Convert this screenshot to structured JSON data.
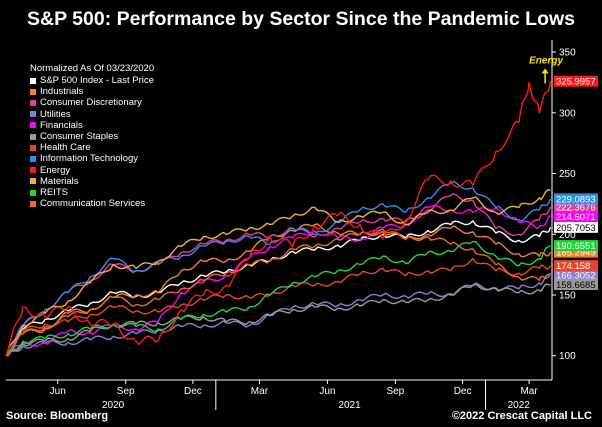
{
  "title": "S&P 500: Performance by Sector Since the Pandemic Lows",
  "source": "Source: Bloomberg",
  "copyright": "©2022 Crescat Capital LLC",
  "colors": {
    "background": "#000000",
    "axis": "#ffffff",
    "text": "#ffffff",
    "annotation_arrow": "#ffe600"
  },
  "chart_data": {
    "type": "line",
    "grid": false,
    "legend_placement": "top-left",
    "legend_header": "Normalized As Of 03/23/2020",
    "ylim": [
      80,
      355
    ],
    "y_ticks": [
      100,
      150,
      200,
      250,
      300,
      350
    ],
    "y_tick_labels": [
      "100",
      "150",
      "200",
      "250",
      "300",
      "350"
    ],
    "xlim": [
      "2020-03-23",
      "2022-04-01"
    ],
    "x_ticks": [
      {
        "date": "2020-06-01",
        "label": "Jun"
      },
      {
        "date": "2020-09-01",
        "label": "Sep"
      },
      {
        "date": "2020-12-01",
        "label": "Dec"
      },
      {
        "date": "2021-03-01",
        "label": "Mar"
      },
      {
        "date": "2021-06-01",
        "label": "Jun"
      },
      {
        "date": "2021-09-01",
        "label": "Sep"
      },
      {
        "date": "2021-12-01",
        "label": "Dec"
      },
      {
        "date": "2022-03-01",
        "label": "Mar"
      }
    ],
    "year_labels": [
      {
        "label": "2020",
        "date": "2020-08-15"
      },
      {
        "label": "2021",
        "date": "2021-07-01"
      },
      {
        "label": "2022",
        "date": "2022-02-15"
      }
    ],
    "year_dividers": [
      "2021-01-01",
      "2022-01-01"
    ],
    "annotation": {
      "text": "Energy",
      "date": "2022-03-20",
      "value": 339
    },
    "series": [
      {
        "name": "S&P 500 Index - Last Price",
        "color": "#ffffff",
        "last_label": "205.7053",
        "last_value": 205.7053,
        "x": [
          "2020-03-23",
          "2020-04-15",
          "2020-05-15",
          "2020-06-15",
          "2020-07-15",
          "2020-08-15",
          "2020-09-15",
          "2020-10-15",
          "2020-11-15",
          "2020-12-15",
          "2021-01-15",
          "2021-02-15",
          "2021-03-15",
          "2021-04-15",
          "2021-05-15",
          "2021-06-15",
          "2021-07-15",
          "2021-08-15",
          "2021-09-15",
          "2021-10-15",
          "2021-11-15",
          "2021-12-15",
          "2022-01-15",
          "2022-02-15",
          "2022-03-15",
          "2022-03-30"
        ],
        "y": [
          100,
          122,
          130,
          137,
          143,
          152,
          149,
          152,
          160,
          166,
          169,
          175,
          178,
          186,
          187,
          191,
          195,
          200,
          197,
          203,
          208,
          211,
          201,
          195,
          198,
          205.7
        ]
      },
      {
        "name": "Industrials",
        "color": "#f58220",
        "last_label": "185.2949",
        "last_value": 185.2949,
        "x": [
          "2020-03-23",
          "2020-04-15",
          "2020-05-15",
          "2020-06-15",
          "2020-07-15",
          "2020-08-15",
          "2020-09-15",
          "2020-10-15",
          "2020-11-15",
          "2020-12-15",
          "2021-01-15",
          "2021-02-15",
          "2021-03-15",
          "2021-04-15",
          "2021-05-15",
          "2021-06-15",
          "2021-07-15",
          "2021-08-15",
          "2021-09-15",
          "2021-10-15",
          "2021-11-15",
          "2021-12-15",
          "2022-01-15",
          "2022-02-15",
          "2022-03-15",
          "2022-03-30"
        ],
        "y": [
          100,
          118,
          122,
          135,
          138,
          148,
          150,
          152,
          170,
          178,
          178,
          186,
          198,
          203,
          208,
          201,
          200,
          202,
          196,
          200,
          205,
          202,
          192,
          184,
          182,
          185.3
        ]
      },
      {
        "name": "Consumer Discretionary",
        "color": "#e6399b",
        "last_label": "222.3676",
        "last_value": 222.3676,
        "x": [
          "2020-03-23",
          "2020-04-15",
          "2020-05-15",
          "2020-06-15",
          "2020-07-15",
          "2020-08-15",
          "2020-09-15",
          "2020-10-15",
          "2020-11-15",
          "2020-12-15",
          "2021-01-15",
          "2021-02-15",
          "2021-03-15",
          "2021-04-15",
          "2021-05-15",
          "2021-06-15",
          "2021-07-15",
          "2021-08-15",
          "2021-09-15",
          "2021-10-15",
          "2021-11-15",
          "2021-12-15",
          "2022-01-15",
          "2022-02-15",
          "2022-03-15",
          "2022-03-30"
        ],
        "y": [
          100,
          125,
          138,
          152,
          162,
          175,
          170,
          175,
          185,
          192,
          195,
          200,
          198,
          205,
          198,
          205,
          210,
          213,
          210,
          220,
          232,
          228,
          205,
          200,
          212,
          222.4
        ]
      },
      {
        "name": "Utilities",
        "color": "#8a7fd6",
        "last_label": "166.3052",
        "last_value": 166.3052,
        "x": [
          "2020-03-23",
          "2020-04-15",
          "2020-05-15",
          "2020-06-15",
          "2020-07-15",
          "2020-08-15",
          "2020-09-15",
          "2020-10-15",
          "2020-11-15",
          "2020-12-15",
          "2021-01-15",
          "2021-02-15",
          "2021-03-15",
          "2021-04-15",
          "2021-05-15",
          "2021-06-15",
          "2021-07-15",
          "2021-08-15",
          "2021-09-15",
          "2021-10-15",
          "2021-11-15",
          "2021-12-15",
          "2022-01-15",
          "2022-02-15",
          "2022-03-15",
          "2022-03-30"
        ],
        "y": [
          100,
          108,
          110,
          111,
          113,
          116,
          118,
          121,
          124,
          125,
          127,
          125,
          133,
          140,
          143,
          141,
          146,
          150,
          149,
          151,
          151,
          158,
          156,
          155,
          160,
          166.3
        ]
      },
      {
        "name": "Financials",
        "color": "#ff00ff",
        "last_label": "214.6071",
        "last_value": 214.6071,
        "x": [
          "2020-03-23",
          "2020-04-15",
          "2020-05-15",
          "2020-06-15",
          "2020-07-15",
          "2020-08-15",
          "2020-09-15",
          "2020-10-15",
          "2020-11-15",
          "2020-12-15",
          "2021-01-15",
          "2021-02-15",
          "2021-03-15",
          "2021-04-15",
          "2021-05-15",
          "2021-06-15",
          "2021-07-15",
          "2021-08-15",
          "2021-09-15",
          "2021-10-15",
          "2021-11-15",
          "2021-12-15",
          "2022-01-15",
          "2022-02-15",
          "2022-03-15",
          "2022-03-30"
        ],
        "y": [
          100,
          110,
          110,
          120,
          119,
          125,
          122,
          128,
          152,
          160,
          166,
          180,
          190,
          197,
          203,
          197,
          196,
          205,
          208,
          222,
          220,
          218,
          222,
          210,
          206,
          214.6
        ]
      },
      {
        "name": "Consumer Staples",
        "color": "#9a9a9a",
        "last_label": "158.6685",
        "last_value": 158.6685,
        "x": [
          "2020-03-23",
          "2020-04-15",
          "2020-05-15",
          "2020-06-15",
          "2020-07-15",
          "2020-08-15",
          "2020-09-15",
          "2020-10-15",
          "2020-11-15",
          "2020-12-15",
          "2021-01-15",
          "2021-02-15",
          "2021-03-15",
          "2021-04-15",
          "2021-05-15",
          "2021-06-15",
          "2021-07-15",
          "2021-08-15",
          "2021-09-15",
          "2021-10-15",
          "2021-11-15",
          "2021-12-15",
          "2022-01-15",
          "2022-02-15",
          "2022-03-15",
          "2022-03-30"
        ],
        "y": [
          100,
          110,
          112,
          114,
          120,
          126,
          126,
          127,
          130,
          132,
          128,
          128,
          133,
          138,
          140,
          139,
          141,
          146,
          144,
          146,
          150,
          158,
          155,
          152,
          154,
          158.7
        ]
      },
      {
        "name": "Health Care",
        "color": "#e8452c",
        "last_label": "174.158",
        "last_value": 174.158,
        "x": [
          "2020-03-23",
          "2020-04-15",
          "2020-05-15",
          "2020-06-15",
          "2020-07-15",
          "2020-08-15",
          "2020-09-15",
          "2020-10-15",
          "2020-11-15",
          "2020-12-15",
          "2021-01-15",
          "2021-02-15",
          "2021-03-15",
          "2021-04-15",
          "2021-05-15",
          "2021-06-15",
          "2021-07-15",
          "2021-08-15",
          "2021-09-15",
          "2021-10-15",
          "2021-11-15",
          "2021-12-15",
          "2022-01-15",
          "2022-02-15",
          "2022-03-15",
          "2022-03-30"
        ],
        "y": [
          100,
          120,
          126,
          128,
          134,
          140,
          137,
          136,
          142,
          146,
          150,
          148,
          150,
          158,
          158,
          161,
          167,
          172,
          166,
          170,
          170,
          180,
          170,
          168,
          172,
          174.2
        ]
      },
      {
        "name": "Information Technology",
        "color": "#2f8fe8",
        "last_label": "229.0893",
        "last_value": 229.0893,
        "x": [
          "2020-03-23",
          "2020-04-15",
          "2020-05-15",
          "2020-06-15",
          "2020-07-15",
          "2020-08-15",
          "2020-09-15",
          "2020-10-15",
          "2020-11-15",
          "2020-12-15",
          "2021-01-15",
          "2021-02-15",
          "2021-03-15",
          "2021-04-15",
          "2021-05-15",
          "2021-06-15",
          "2021-07-15",
          "2021-08-15",
          "2021-09-15",
          "2021-10-15",
          "2021-11-15",
          "2021-12-15",
          "2022-01-15",
          "2022-02-15",
          "2022-03-15",
          "2022-03-30"
        ],
        "y": [
          100,
          124,
          138,
          152,
          165,
          180,
          170,
          176,
          182,
          190,
          194,
          198,
          192,
          205,
          200,
          210,
          220,
          225,
          218,
          230,
          242,
          238,
          222,
          212,
          220,
          229.1
        ]
      },
      {
        "name": "Energy",
        "color": "#ff1a1a",
        "last_label": "325.9957",
        "last_value": 325.9957,
        "x": [
          "2020-03-23",
          "2020-04-15",
          "2020-05-15",
          "2020-06-15",
          "2020-07-15",
          "2020-08-15",
          "2020-09-15",
          "2020-10-15",
          "2020-11-15",
          "2020-12-15",
          "2021-01-15",
          "2021-02-15",
          "2021-03-15",
          "2021-04-15",
          "2021-05-15",
          "2021-06-15",
          "2021-07-15",
          "2021-08-15",
          "2021-09-15",
          "2021-10-15",
          "2021-11-15",
          "2021-12-15",
          "2022-01-15",
          "2022-02-15",
          "2022-03-01",
          "2022-03-15",
          "2022-03-30"
        ],
        "y": [
          100,
          140,
          132,
          140,
          126,
          126,
          112,
          112,
          138,
          150,
          158,
          180,
          198,
          190,
          207,
          215,
          208,
          196,
          212,
          245,
          244,
          240,
          268,
          292,
          325,
          300,
          326
        ]
      },
      {
        "name": "Materials",
        "color": "#f2b134",
        "last_label": "",
        "last_value": 236,
        "x": [
          "2020-03-23",
          "2020-04-15",
          "2020-05-15",
          "2020-06-15",
          "2020-07-15",
          "2020-08-15",
          "2020-09-15",
          "2020-10-15",
          "2020-11-15",
          "2020-12-15",
          "2021-01-15",
          "2021-02-15",
          "2021-03-15",
          "2021-04-15",
          "2021-05-15",
          "2021-06-15",
          "2021-07-15",
          "2021-08-15",
          "2021-09-15",
          "2021-10-15",
          "2021-11-15",
          "2021-12-15",
          "2022-01-15",
          "2022-02-15",
          "2022-03-15",
          "2022-03-30"
        ],
        "y": [
          100,
          125,
          135,
          145,
          160,
          175,
          172,
          178,
          190,
          198,
          200,
          205,
          208,
          215,
          222,
          210,
          215,
          218,
          208,
          218,
          220,
          230,
          218,
          222,
          230,
          236
        ]
      },
      {
        "name": "REITS",
        "color": "#22d43a",
        "last_label": "190.6551",
        "last_value": 190.6551,
        "x": [
          "2020-03-23",
          "2020-04-15",
          "2020-05-15",
          "2020-06-15",
          "2020-07-15",
          "2020-08-15",
          "2020-09-15",
          "2020-10-15",
          "2020-11-15",
          "2020-12-15",
          "2021-01-15",
          "2021-02-15",
          "2021-03-15",
          "2021-04-15",
          "2021-05-15",
          "2021-06-15",
          "2021-07-15",
          "2021-08-15",
          "2021-09-15",
          "2021-10-15",
          "2021-11-15",
          "2021-12-15",
          "2022-01-15",
          "2022-02-15",
          "2022-03-15",
          "2022-03-30"
        ],
        "y": [
          100,
          112,
          114,
          118,
          122,
          126,
          124,
          122,
          130,
          134,
          136,
          140,
          150,
          160,
          165,
          170,
          175,
          182,
          176,
          185,
          186,
          194,
          182,
          174,
          180,
          190.7
        ]
      },
      {
        "name": "Communication Services",
        "color": "#f06a1e",
        "last_label": "",
        "last_value": 168,
        "x": [
          "2020-03-23",
          "2020-04-15",
          "2020-05-15",
          "2020-06-15",
          "2020-07-15",
          "2020-08-15",
          "2020-09-15",
          "2020-10-15",
          "2020-11-15",
          "2020-12-15",
          "2021-01-15",
          "2021-02-15",
          "2021-03-15",
          "2021-04-15",
          "2021-05-15",
          "2021-06-15",
          "2021-07-15",
          "2021-08-15",
          "2021-09-15",
          "2021-10-15",
          "2021-11-15",
          "2021-12-15",
          "2022-01-15",
          "2022-02-15",
          "2022-03-15",
          "2022-03-30"
        ],
        "y": [
          100,
          118,
          124,
          132,
          138,
          148,
          142,
          146,
          155,
          162,
          168,
          175,
          178,
          188,
          190,
          196,
          200,
          204,
          196,
          198,
          192,
          188,
          175,
          165,
          162,
          168
        ]
      }
    ]
  }
}
